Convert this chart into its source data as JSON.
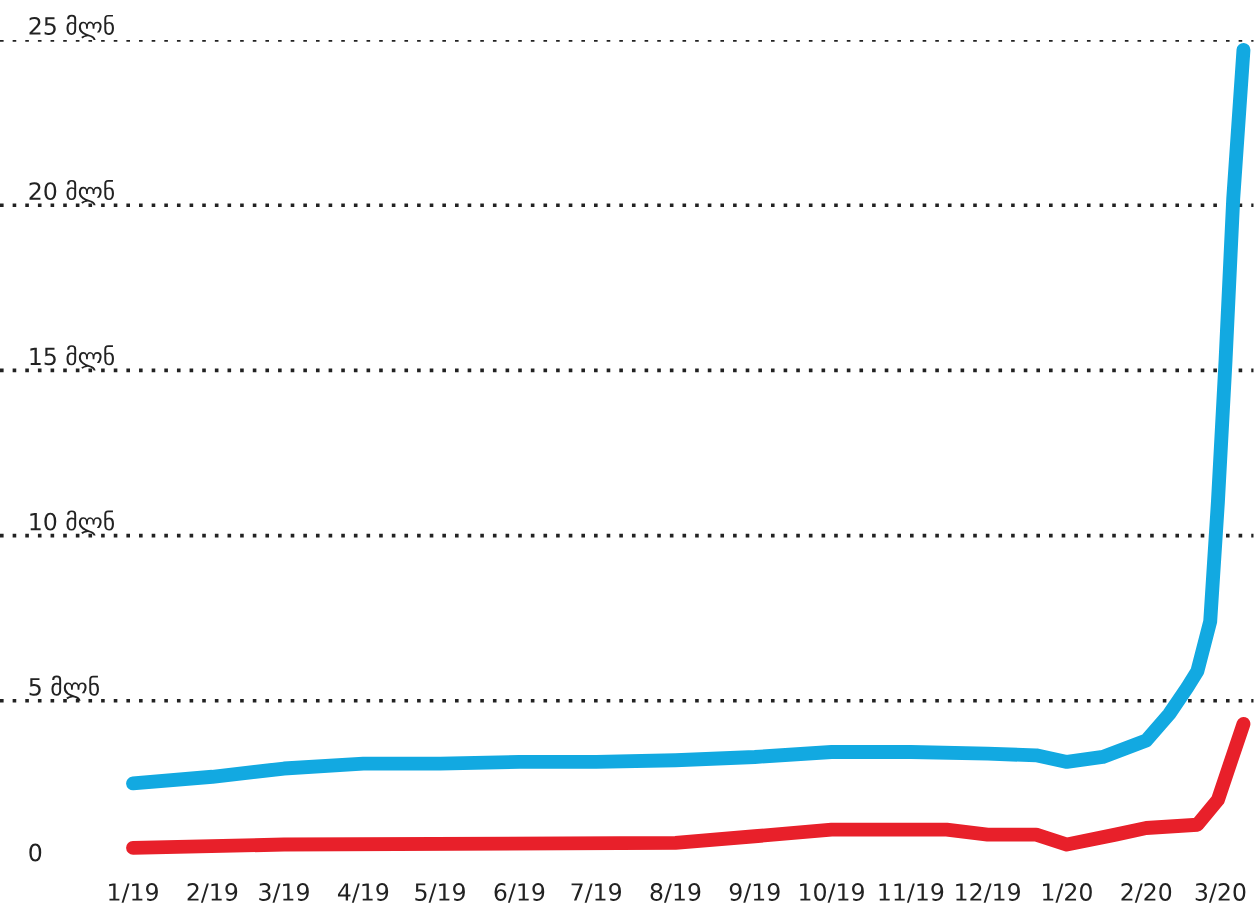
{
  "chart_data": {
    "type": "line",
    "series": [
      {
        "color": "#12a9e1",
        "x": [
          "2019-01-01",
          "2019-02-01",
          "2019-03-01",
          "2019-04-01",
          "2019-05-01",
          "2019-06-01",
          "2019-07-01",
          "2019-08-01",
          "2019-09-01",
          "2019-10-01",
          "2019-11-01",
          "2019-12-01",
          "2019-12-20",
          "2020-01-01",
          "2020-01-15",
          "2020-02-01",
          "2020-02-10",
          "2020-02-17",
          "2020-02-21",
          "2020-02-26",
          "2020-02-29",
          "2020-03-03",
          "2020-03-06",
          "2020-03-10"
        ],
        "values": [
          2.5,
          2.7,
          2.95,
          3.1,
          3.1,
          3.15,
          3.15,
          3.2,
          3.3,
          3.45,
          3.45,
          3.4,
          3.35,
          3.15,
          3.3,
          3.8,
          4.6,
          5.4,
          5.9,
          7.4,
          11,
          15.3,
          20.2,
          24.7
        ]
      },
      {
        "color": "#e8202a",
        "x": [
          "2019-01-01",
          "2019-03-01",
          "2019-08-01",
          "2019-09-01",
          "2019-10-01",
          "2019-11-15",
          "2019-12-01",
          "2019-12-20",
          "2020-01-01",
          "2020-01-20",
          "2020-02-01",
          "2020-02-21",
          "2020-02-29",
          "2020-03-10"
        ],
        "values": [
          0.55,
          0.65,
          0.7,
          0.9,
          1.1,
          1.1,
          0.95,
          0.95,
          0.65,
          0.95,
          1.15,
          1.25,
          2.0,
          4.3
        ]
      }
    ],
    "xlim": [
      "2018-11-10",
      "2020-03-14"
    ],
    "xticks": [
      {
        "value": "2019-01-01",
        "label": "1/19"
      },
      {
        "value": "2019-02-01",
        "label": "2/19"
      },
      {
        "value": "2019-03-01",
        "label": "3/19"
      },
      {
        "value": "2019-04-01",
        "label": "4/19"
      },
      {
        "value": "2019-05-01",
        "label": "5/19"
      },
      {
        "value": "2019-06-01",
        "label": "6/19"
      },
      {
        "value": "2019-07-01",
        "label": "7/19"
      },
      {
        "value": "2019-08-01",
        "label": "8/19"
      },
      {
        "value": "2019-09-01",
        "label": "9/19"
      },
      {
        "value": "2019-10-01",
        "label": "10/19"
      },
      {
        "value": "2019-11-01",
        "label": "11/19"
      },
      {
        "value": "2019-12-01",
        "label": "12/19"
      },
      {
        "value": "2020-01-01",
        "label": "1/20"
      },
      {
        "value": "2020-02-01",
        "label": "2/20"
      },
      {
        "value": "2020-03-01",
        "label": "3/20"
      }
    ],
    "ylim": [
      0,
      25
    ],
    "yticks": [
      0,
      {
        "value": 5,
        "label": "5 მლნ"
      },
      {
        "value": 10,
        "label": "10 მლნ"
      },
      {
        "value": 15,
        "label": "15 მლნ"
      },
      {
        "value": 20,
        "label": "20 მლნ"
      },
      {
        "value": 25,
        "label": "25 მლნ"
      }
    ],
    "grid": "y",
    "marker": "none",
    "line_style": "solid"
  }
}
